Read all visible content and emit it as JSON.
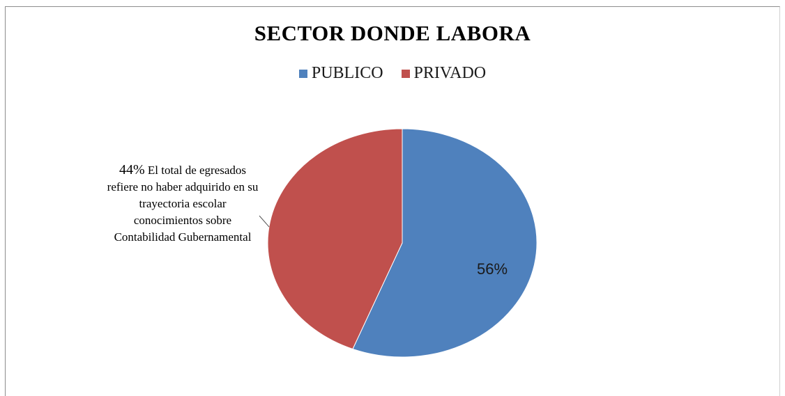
{
  "chart_data": {
    "type": "pie",
    "title": "SECTOR DONDE LABORA",
    "legend_position": "top",
    "categories": [
      "PUBLICO",
      "PRIVADO"
    ],
    "values": [
      56,
      44
    ],
    "colors": [
      "#4f81bd",
      "#c0504d"
    ],
    "labels": {
      "publico": "56%",
      "privado_pct": "44%",
      "privado_text": "El total de egresados refiere no haber adquirido en su trayectoria escolar conocimientos sobre Contabilidad Gubernamental"
    }
  }
}
